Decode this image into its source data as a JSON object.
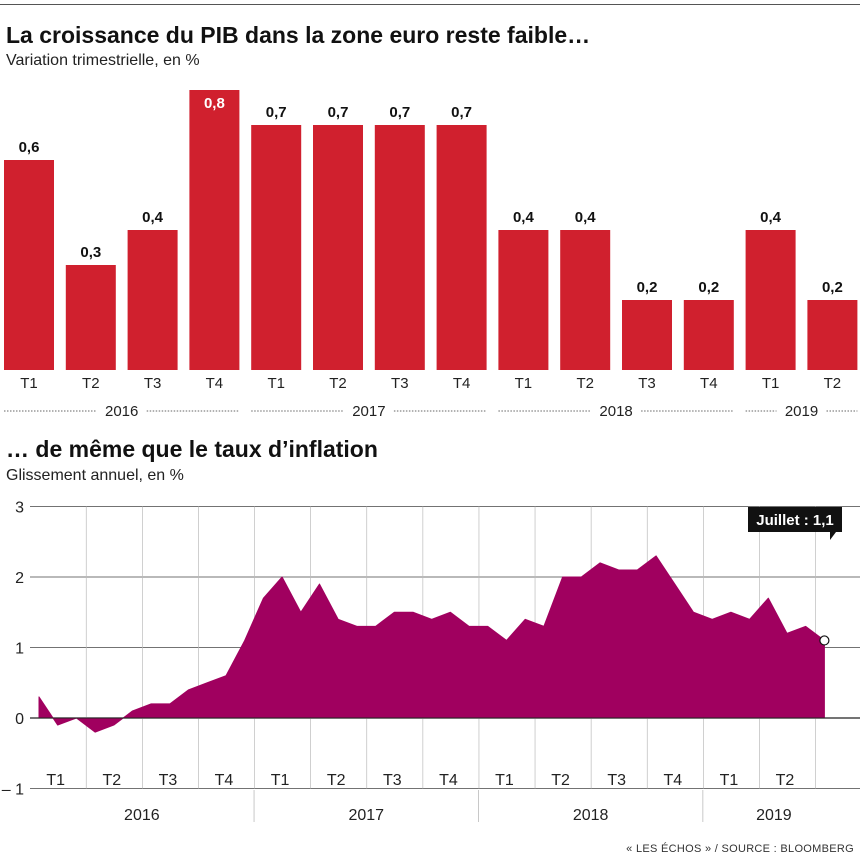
{
  "source": "« LES ÉCHOS » / SOURCE : BLOOMBERG",
  "chart_data": [
    {
      "type": "bar",
      "title": "La croissance du PIB dans la zone euro reste faible…",
      "subtitle": "Variation trimestrielle, en %",
      "color": "#d0202e",
      "categories": [
        "T1",
        "T2",
        "T3",
        "T4",
        "T1",
        "T2",
        "T3",
        "T4",
        "T1",
        "T2",
        "T3",
        "T4",
        "T1",
        "T2"
      ],
      "values": [
        0.6,
        0.3,
        0.4,
        0.8,
        0.7,
        0.7,
        0.7,
        0.7,
        0.4,
        0.4,
        0.2,
        0.2,
        0.4,
        0.2
      ],
      "value_labels": [
        "0,6",
        "0,3",
        "0,4",
        "0,8",
        "0,7",
        "0,7",
        "0,7",
        "0,7",
        "0,4",
        "0,4",
        "0,2",
        "0,2",
        "0,4",
        "0,2"
      ],
      "years": [
        {
          "label": "2016",
          "from": 0,
          "to": 3
        },
        {
          "label": "2017",
          "from": 4,
          "to": 7
        },
        {
          "label": "2018",
          "from": 8,
          "to": 11
        },
        {
          "label": "2019",
          "from": 12,
          "to": 13
        }
      ]
    },
    {
      "type": "area",
      "title": "… de même que le taux d’inflation",
      "subtitle": "Glissement annuel, en %",
      "color": "#a0005f",
      "ylim": [
        -1,
        3
      ],
      "yticks": [
        3,
        2,
        1,
        0,
        -1
      ],
      "ytick_labels": [
        "3",
        "2",
        "1",
        "0",
        "– 1"
      ],
      "grid": true,
      "x_start": "2016-01",
      "x_end": "2019-07",
      "quarter_labels": [
        "T1",
        "T2",
        "T3",
        "T4",
        "T1",
        "T2",
        "T3",
        "T4",
        "T1",
        "T2",
        "T3",
        "T4",
        "T1",
        "T2"
      ],
      "years": [
        "2016",
        "2017",
        "2018",
        "2019"
      ],
      "values": [
        0.3,
        -0.1,
        0.0,
        -0.2,
        -0.1,
        0.1,
        0.2,
        0.2,
        0.4,
        0.5,
        0.6,
        1.1,
        1.7,
        2.0,
        1.5,
        1.9,
        1.4,
        1.3,
        1.3,
        1.5,
        1.5,
        1.4,
        1.5,
        1.3,
        1.3,
        1.1,
        1.4,
        1.3,
        2.0,
        2.0,
        2.2,
        2.1,
        2.1,
        2.3,
        1.9,
        1.5,
        1.4,
        1.5,
        1.4,
        1.7,
        1.2,
        1.3,
        1.1
      ],
      "annotation": "Juillet : 1,1"
    }
  ]
}
